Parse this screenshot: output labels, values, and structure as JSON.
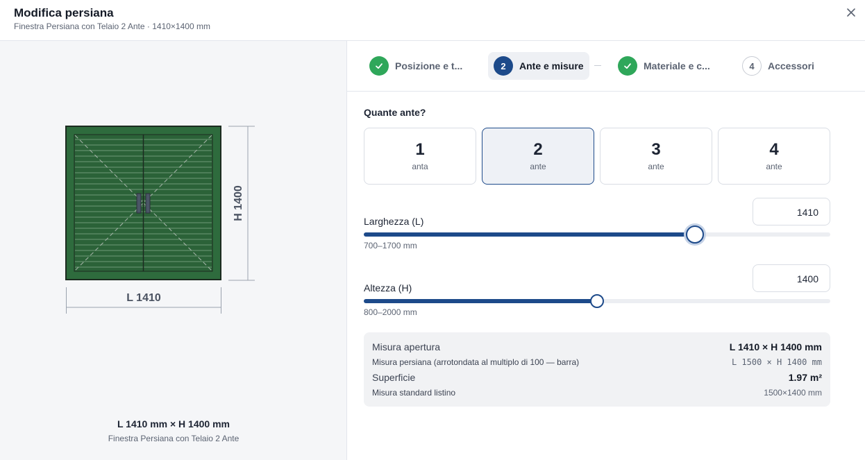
{
  "header": {
    "title": "Modifica persiana",
    "subtitle": "Finestra Persiana con Telaio 2 Ante · 1410×1400 mm",
    "close_icon": "close-icon"
  },
  "preview": {
    "width_label": "L 1410",
    "height_label": "H 1400",
    "dimensions": "L 1410 mm × H 1400 mm",
    "product_name": "Finestra Persiana con Telaio 2 Ante",
    "frame_color": "#2e6b3d",
    "frame_border": "#1c2b20"
  },
  "stepper": {
    "steps": [
      {
        "number": "1",
        "label": "Posizione e t...",
        "status": "done"
      },
      {
        "number": "2",
        "label": "Ante e misure",
        "status": "active"
      },
      {
        "number": "3",
        "label": "Materiale e c...",
        "status": "done"
      },
      {
        "number": "4",
        "label": "Accessori",
        "status": "todo"
      }
    ]
  },
  "ante": {
    "question": "Quante ante?",
    "options": [
      {
        "num": "1",
        "unit": "anta"
      },
      {
        "num": "2",
        "unit": "ante"
      },
      {
        "num": "3",
        "unit": "ante"
      },
      {
        "num": "4",
        "unit": "ante"
      }
    ],
    "selected": "2"
  },
  "width": {
    "label": "Larghezza (L)",
    "value": "1410",
    "min": 700,
    "max": 1700,
    "current": 1410,
    "range_hint": "700–1700 mm"
  },
  "height": {
    "label": "Altezza (H)",
    "value": "1400",
    "min": 800,
    "max": 2000,
    "current": 1400,
    "range_hint": "800–2000 mm"
  },
  "summary": {
    "apertura_label": "Misura apertura",
    "apertura_value": "L 1410 × H 1400 mm",
    "persiana_label": "Misura persiana (arrotondata al multiplo di 100 — barra)",
    "persiana_value": "L 1500 × H 1400 mm",
    "superficie_label": "Superficie",
    "superficie_value": "1.97 m²",
    "listino_label": "Misura standard listino",
    "listino_value": "1500×1400 mm"
  },
  "colors": {
    "accent": "#1d4a8a",
    "success": "#2fa75a"
  }
}
